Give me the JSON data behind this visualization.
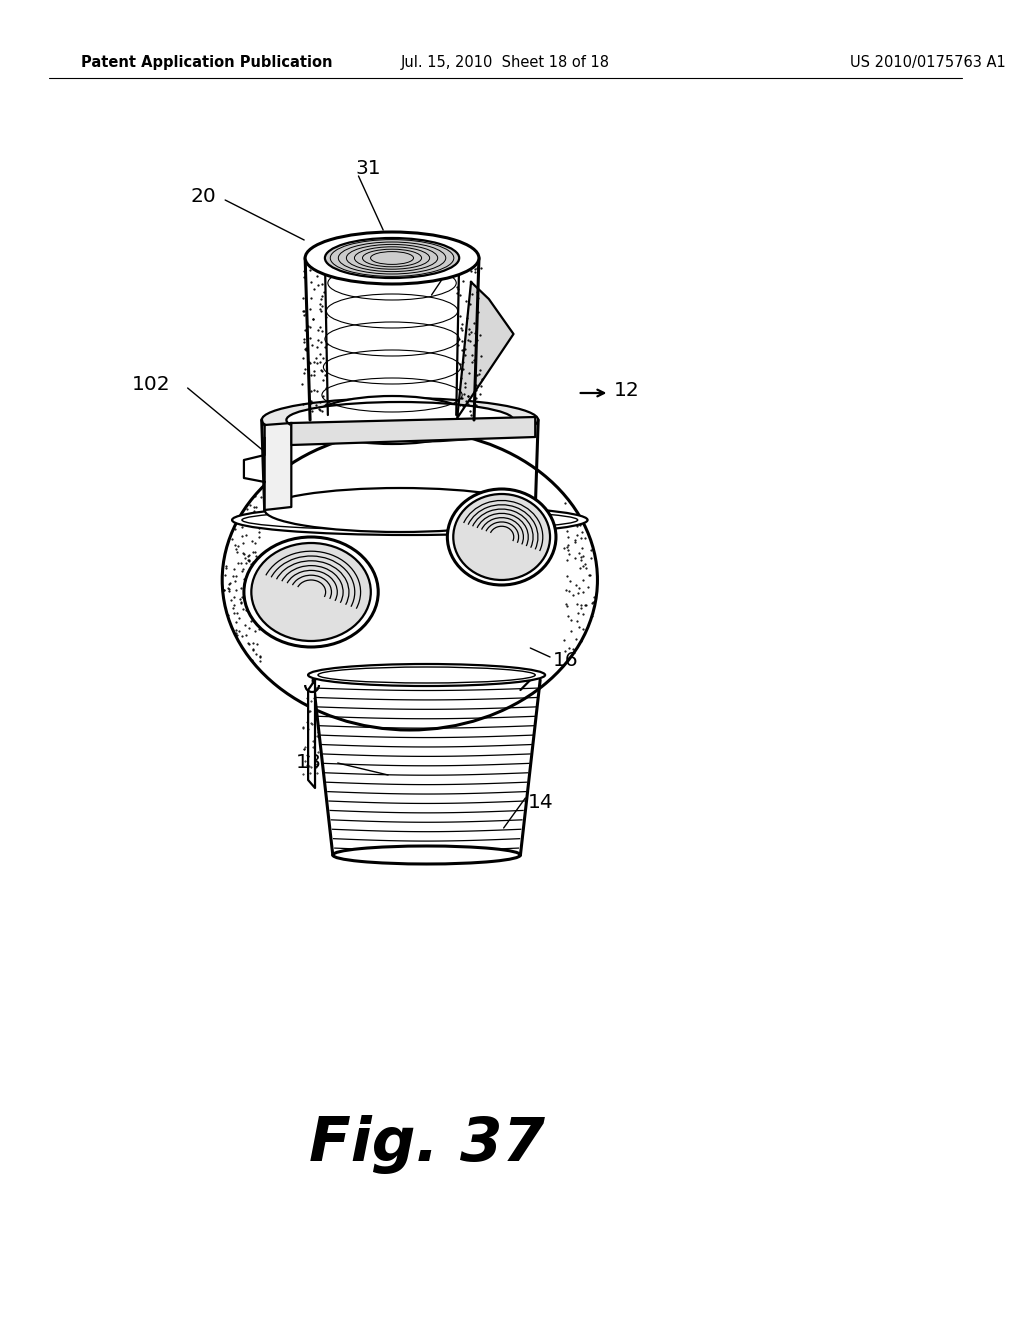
{
  "header_left": "Patent Application Publication",
  "header_center": "Jul. 15, 2010  Sheet 18 of 18",
  "header_right": "US 2010/0175763 A1",
  "figure_label": "Fig. 37",
  "background_color": "#ffffff",
  "line_color": "#000000",
  "stipple_color": "#555555"
}
